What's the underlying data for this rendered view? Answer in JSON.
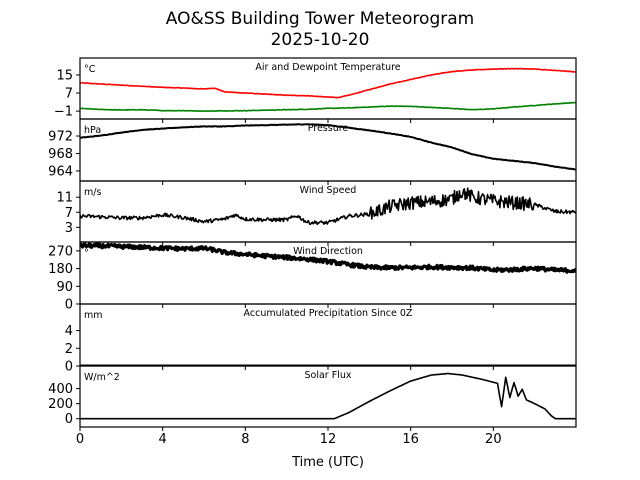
{
  "chart_data": {
    "type": "line",
    "title": "AO&SS Building Tower Meteorogram",
    "subtitle": "2025-10-20",
    "xlabel": "Time (UTC)",
    "xlim": [
      0,
      24
    ],
    "xticks": [
      0,
      4,
      8,
      12,
      16,
      20
    ],
    "xtick_labels": [
      "0",
      "4",
      "8",
      "12",
      "16",
      "20"
    ],
    "colors": {
      "air": "#ff0000",
      "dewpoint": "#008000",
      "line": "#000000"
    },
    "panels": [
      {
        "id": "temperature",
        "title": "Air and Dewpoint Temperature",
        "unit": "°C",
        "ylim": [
          -4.5,
          22.5
        ],
        "yticks": [
          15,
          7,
          -1
        ],
        "ytick_labels": [
          "15",
          "7",
          "−1"
        ],
        "series": [
          {
            "name": "Air Temperature",
            "color": "#ff0000",
            "x": [
              0,
              1,
              2,
              3,
              4,
              5,
              6,
              6.5,
              7,
              8,
              9,
              10,
              11,
              12,
              12.5,
              13,
              14,
              15,
              16,
              17,
              18,
              19,
              20,
              21,
              22,
              23,
              24
            ],
            "values": [
              11.5,
              11.0,
              10.5,
              10.0,
              9.5,
              9.2,
              8.8,
              9.2,
              7.5,
              7.0,
              6.5,
              6.0,
              5.8,
              5.2,
              5.0,
              6.0,
              8.5,
              11.0,
              13.0,
              15.0,
              16.5,
              17.2,
              17.6,
              17.8,
              17.6,
              17.0,
              16.3
            ]
          },
          {
            "name": "Dewpoint Temperature",
            "color": "#008000",
            "x": [
              0,
              1,
              2,
              3,
              4,
              5,
              6,
              7,
              8,
              9,
              10,
              11,
              12,
              13,
              14,
              15,
              16,
              17,
              18,
              19,
              20,
              21,
              22,
              23,
              24
            ],
            "values": [
              0.2,
              -0.3,
              -0.5,
              -0.4,
              -0.8,
              -0.8,
              -1.0,
              -0.9,
              -0.8,
              -0.6,
              -0.4,
              -0.2,
              0.2,
              0.4,
              0.8,
              1.2,
              1.1,
              0.6,
              0.2,
              -0.4,
              0.0,
              0.8,
              1.5,
              2.2,
              2.8
            ]
          }
        ]
      },
      {
        "id": "pressure",
        "title": "Pressure",
        "unit": "hPa",
        "ylim": [
          961.7,
          975.9
        ],
        "yticks": [
          972,
          968,
          964
        ],
        "ytick_labels": [
          "972",
          "968",
          "964"
        ],
        "series": [
          {
            "name": "Pressure",
            "color": "#000000",
            "x": [
              0,
              1,
              2,
              3,
              4,
              5,
              6,
              7,
              8,
              9,
              10,
              11,
              12,
              13,
              14,
              15,
              16,
              17,
              18,
              19,
              20,
              21,
              22,
              23,
              24
            ],
            "values": [
              971.6,
              972.1,
              972.8,
              973.4,
              973.7,
              974.0,
              974.2,
              974.2,
              974.4,
              974.5,
              974.6,
              974.7,
              974.5,
              973.9,
              973.3,
              972.6,
              971.8,
              970.5,
              969.4,
              967.8,
              966.8,
              966.3,
              965.8,
              965.0,
              964.3
            ]
          }
        ]
      },
      {
        "id": "wind_speed",
        "title": "Wind Speed",
        "unit": "m/s",
        "ylim": [
          -0.9,
          15.3
        ],
        "yticks": [
          11,
          7,
          3
        ],
        "ytick_labels": [
          "11",
          "7",
          "3"
        ],
        "series": [
          {
            "name": "Wind Speed",
            "color": "#000000",
            "noise": 1,
            "x": [
              0,
              1,
              2,
              3,
              4,
              5,
              6,
              7,
              7.5,
              8,
              9,
              10,
              10.5,
              11,
              12,
              13,
              14,
              15,
              16,
              17,
              18,
              18.5,
              19,
              20,
              21,
              22,
              23,
              24
            ],
            "values": [
              6.0,
              5.8,
              5.5,
              5.5,
              6.3,
              5.6,
              4.5,
              5.2,
              6.3,
              5.2,
              5.0,
              5.0,
              6.1,
              4.3,
              4.2,
              6.0,
              6.5,
              8.5,
              9.5,
              9.8,
              10.5,
              12.5,
              11.0,
              10.0,
              9.5,
              9.0,
              7.2,
              7.0
            ]
          }
        ]
      },
      {
        "id": "wind_direction",
        "title": "Wind Direction",
        "unit": "°",
        "ylim": [
          0,
          315
        ],
        "yticks": [
          270,
          180,
          90,
          0
        ],
        "ytick_labels": [
          "270",
          "180",
          "90",
          "0"
        ],
        "series": [
          {
            "name": "Wind Direction",
            "color": "#000000",
            "noise": 1,
            "x": [
              0,
              1,
              2,
              3,
              4,
              5,
              6,
              6.5,
              7,
              8,
              9,
              10,
              11,
              12,
              13,
              14,
              15,
              16,
              17,
              18,
              19,
              20,
              21,
              22,
              23,
              24
            ],
            "values": [
              297,
              295,
              292,
              288,
              284,
              281,
              283,
              274,
              262,
              252,
              244,
              236,
              228,
              216,
              200,
              186,
              184,
              185,
              188,
              186,
              183,
              172,
              175,
              182,
              172,
              170
            ]
          }
        ]
      },
      {
        "id": "precipitation",
        "title": "Accumulated Precipitation Since 0Z",
        "unit": "mm",
        "ylim": [
          0,
          7
        ],
        "yticks": [
          4,
          2,
          0
        ],
        "ytick_labels": [
          "4",
          "2",
          "0"
        ],
        "series": [
          {
            "name": "Accumulated Precipitation",
            "color": "#000000",
            "x": [
              0,
              24
            ],
            "values": [
              0,
              0
            ]
          }
        ]
      },
      {
        "id": "solar_flux",
        "title": "Solar Flux",
        "unit": "W/m^2",
        "ylim": [
          -110,
          700
        ],
        "yticks": [
          400,
          200,
          0
        ],
        "ytick_labels": [
          "400",
          "200",
          "0"
        ],
        "series": [
          {
            "name": "Solar Flux",
            "color": "#000000",
            "x": [
              0,
              12.3,
              13,
              14,
              15,
              16,
              17,
              17.8,
              18.5,
              19.5,
              20.2,
              20.4,
              20.6,
              20.8,
              21.0,
              21.2,
              21.4,
              21.6,
              22.0,
              22.5,
              22.8,
              23,
              24
            ],
            "values": [
              0,
              0,
              80,
              230,
              370,
              500,
              580,
              600,
              580,
              520,
              470,
              160,
              550,
              280,
              480,
              300,
              390,
              250,
              200,
              130,
              40,
              0,
              0
            ]
          }
        ]
      }
    ]
  }
}
